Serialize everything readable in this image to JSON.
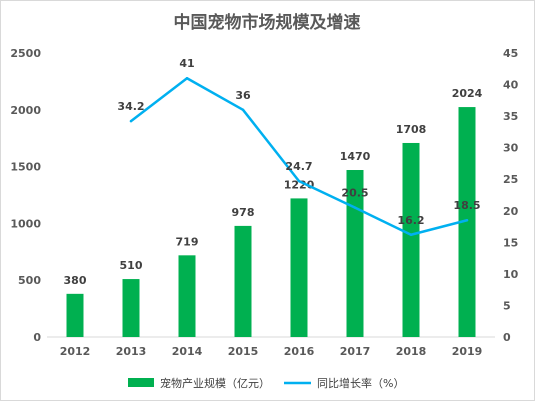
{
  "chart_data": {
    "type": "bar",
    "title": "中国宠物市场规模及增速",
    "categories": [
      "2012",
      "2013",
      "2014",
      "2015",
      "2016",
      "2017",
      "2018",
      "2019"
    ],
    "series": [
      {
        "name": "宠物产业规模（亿元）",
        "type": "bar",
        "axis": "left",
        "values": [
          380,
          510,
          719,
          978,
          1220,
          1470,
          1708,
          2024
        ],
        "labels": [
          "380",
          "510",
          "719",
          "978",
          "1220",
          "1470",
          "1708",
          "2024"
        ],
        "color": "#00b050"
      },
      {
        "name": "同比增长率（%）",
        "type": "line",
        "axis": "right",
        "values": [
          null,
          34.2,
          41,
          36,
          24.7,
          20.5,
          16.2,
          18.5
        ],
        "labels": [
          null,
          "34.2",
          "41",
          "36",
          "24.7",
          "20.5",
          "16.2",
          "18.5"
        ],
        "color": "#00b0f0"
      }
    ],
    "y_left": {
      "min": 0,
      "max": 2500,
      "ticks": [
        "0",
        "500",
        "1000",
        "1500",
        "2000",
        "2500"
      ]
    },
    "y_right": {
      "min": 0,
      "max": 45,
      "ticks": [
        "0",
        "5",
        "10",
        "15",
        "20",
        "25",
        "30",
        "35",
        "40",
        "45"
      ]
    },
    "grid": false,
    "legend_position": "bottom"
  }
}
